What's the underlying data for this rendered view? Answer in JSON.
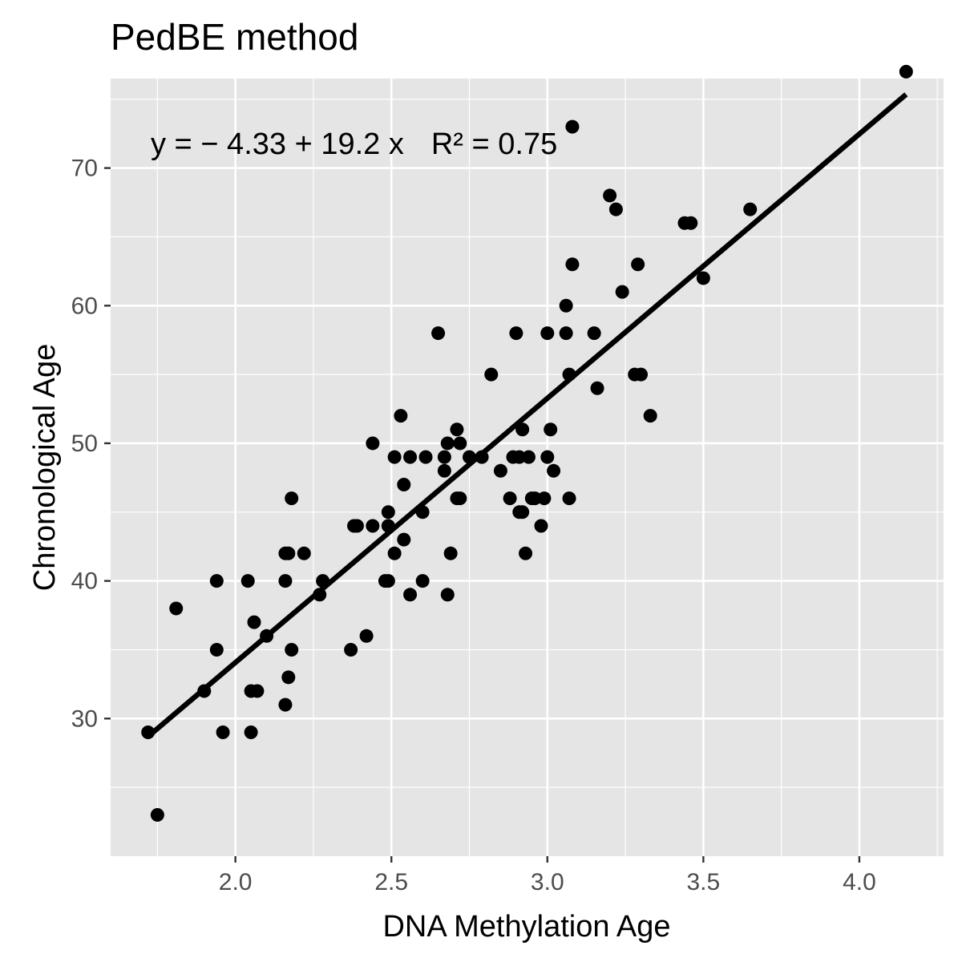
{
  "chart_data": {
    "type": "scatter",
    "title": "PedBE method",
    "xlabel": "DNA Methylation Age",
    "ylabel": "Chronological Age",
    "xlim": [
      1.6,
      4.27
    ],
    "ylim": [
      20,
      76.5
    ],
    "x_ticks": [
      2.0,
      2.5,
      3.0,
      3.5,
      4.0
    ],
    "x_tick_labels": [
      "2.0",
      "2.5",
      "3.0",
      "3.5",
      "4.0"
    ],
    "y_ticks": [
      30,
      40,
      50,
      60,
      70
    ],
    "y_tick_labels": [
      "30",
      "40",
      "50",
      "60",
      "70"
    ],
    "grid": true,
    "annotation": {
      "equation": "y = − 4.33 + 19.2 x",
      "r_squared": "R² = 0.75"
    },
    "fit_line": {
      "intercept": -4.33,
      "slope": 19.2,
      "x_range": [
        1.72,
        4.15
      ]
    },
    "colors": {
      "panel": "#e5e5e5",
      "grid": "#ffffff",
      "points": "#000000",
      "line": "#000000"
    },
    "points": [
      [
        4.15,
        77
      ],
      [
        3.08,
        73
      ],
      [
        3.2,
        68
      ],
      [
        3.22,
        67
      ],
      [
        3.65,
        67
      ],
      [
        3.44,
        66
      ],
      [
        3.46,
        66
      ],
      [
        3.08,
        63
      ],
      [
        3.29,
        63
      ],
      [
        3.5,
        62
      ],
      [
        3.24,
        61
      ],
      [
        3.06,
        60
      ],
      [
        2.65,
        58
      ],
      [
        2.9,
        58
      ],
      [
        3.0,
        58
      ],
      [
        3.06,
        58
      ],
      [
        3.15,
        58
      ],
      [
        2.82,
        55
      ],
      [
        3.07,
        55
      ],
      [
        3.28,
        55
      ],
      [
        3.3,
        55
      ],
      [
        3.16,
        54
      ],
      [
        2.53,
        52
      ],
      [
        3.33,
        52
      ],
      [
        2.71,
        51
      ],
      [
        2.92,
        51
      ],
      [
        3.01,
        51
      ],
      [
        2.44,
        50
      ],
      [
        2.68,
        50
      ],
      [
        2.72,
        50
      ],
      [
        2.51,
        49
      ],
      [
        2.56,
        49
      ],
      [
        2.61,
        49
      ],
      [
        2.67,
        49
      ],
      [
        2.75,
        49
      ],
      [
        2.79,
        49
      ],
      [
        2.89,
        49
      ],
      [
        2.91,
        49
      ],
      [
        2.94,
        49
      ],
      [
        3.0,
        49
      ],
      [
        2.67,
        48
      ],
      [
        2.85,
        48
      ],
      [
        3.02,
        48
      ],
      [
        2.54,
        47
      ],
      [
        2.18,
        46
      ],
      [
        2.71,
        46
      ],
      [
        2.72,
        46
      ],
      [
        2.88,
        46
      ],
      [
        2.95,
        46
      ],
      [
        2.96,
        46
      ],
      [
        2.99,
        46
      ],
      [
        3.07,
        46
      ],
      [
        2.49,
        45
      ],
      [
        2.6,
        45
      ],
      [
        2.91,
        45
      ],
      [
        2.92,
        45
      ],
      [
        2.38,
        44
      ],
      [
        2.39,
        44
      ],
      [
        2.44,
        44
      ],
      [
        2.49,
        44
      ],
      [
        2.98,
        44
      ],
      [
        2.54,
        43
      ],
      [
        2.16,
        42
      ],
      [
        2.17,
        42
      ],
      [
        2.22,
        42
      ],
      [
        2.51,
        42
      ],
      [
        2.69,
        42
      ],
      [
        2.93,
        42
      ],
      [
        1.94,
        40
      ],
      [
        2.04,
        40
      ],
      [
        2.16,
        40
      ],
      [
        2.28,
        40
      ],
      [
        2.48,
        40
      ],
      [
        2.49,
        40
      ],
      [
        2.6,
        40
      ],
      [
        2.27,
        39
      ],
      [
        2.56,
        39
      ],
      [
        2.68,
        39
      ],
      [
        1.81,
        38
      ],
      [
        2.06,
        37
      ],
      [
        2.1,
        36
      ],
      [
        2.42,
        36
      ],
      [
        1.94,
        35
      ],
      [
        2.18,
        35
      ],
      [
        2.37,
        35
      ],
      [
        2.17,
        33
      ],
      [
        1.9,
        32
      ],
      [
        2.05,
        32
      ],
      [
        2.07,
        32
      ],
      [
        2.16,
        31
      ],
      [
        1.72,
        29
      ],
      [
        1.96,
        29
      ],
      [
        2.05,
        29
      ],
      [
        1.75,
        23
      ]
    ]
  }
}
